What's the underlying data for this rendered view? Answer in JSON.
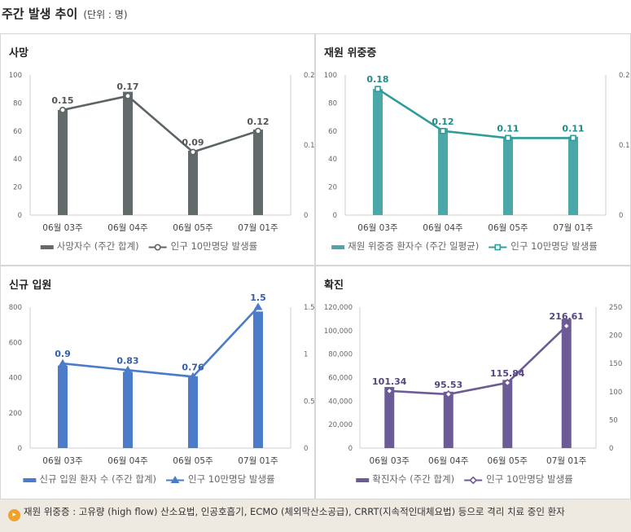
{
  "header": {
    "title": "주간 발생 추이",
    "unit": "(단위 : 명)"
  },
  "note": {
    "icon": "speaker-icon",
    "text": "재원 위중증 : 고유량 (high flow) 산소요법, 인공호흡기, ECMO (체외막산소공급), CRRT(지속적인대체요법) 등으로 격리 치료 중인 환자"
  },
  "chart_data": [
    {
      "type": "bar",
      "title": "사망",
      "color": "#626a6c",
      "lineColor": "#5c6366",
      "labelColor": "#555555",
      "marker": "circle",
      "categories": [
        "06월 03주",
        "06월 04주",
        "06월 05주",
        "07월 01주"
      ],
      "bar_series": {
        "name": "사망자수 (주간 합계)",
        "values": [
          75,
          88,
          46,
          61
        ]
      },
      "line_series": {
        "name": "인구 10만명당 발생률",
        "values": [
          0.15,
          0.17,
          0.09,
          0.12
        ]
      },
      "ylim_left": [
        0,
        100
      ],
      "yticks_left": [
        0,
        20,
        40,
        60,
        80,
        100
      ],
      "yticklabels_left": [
        "0",
        "20",
        "40",
        "60",
        "80",
        "100"
      ],
      "ylim_right": [
        0,
        0.2
      ],
      "yticks_right": [
        0,
        0.1,
        0.2
      ],
      "yticklabels_right": [
        "0",
        "0.1",
        "0.2"
      ],
      "data_labels": [
        "0.15",
        "0.17",
        "0.09",
        "0.12"
      ],
      "legend": [
        "사망자수 (주간 합계)",
        "인구 10만명당 발생률"
      ]
    },
    {
      "type": "bar",
      "title": "재원 위중증",
      "color": "#4aa9a8",
      "lineColor": "#2f9c9c",
      "labelColor": "#228b8b",
      "marker": "square",
      "categories": [
        "06월 03주",
        "06월 04주",
        "06월 05주",
        "07월 01주"
      ],
      "bar_series": {
        "name": "재원 위중증 환자수 (주간 일평균)",
        "values": [
          90,
          62,
          56,
          56
        ]
      },
      "line_series": {
        "name": "인구 10만명당 발생률",
        "values": [
          0.18,
          0.12,
          0.11,
          0.11
        ]
      },
      "ylim_left": [
        0,
        100
      ],
      "yticks_left": [
        0,
        20,
        40,
        60,
        80,
        100
      ],
      "yticklabels_left": [
        "0",
        "20",
        "40",
        "60",
        "80",
        "100"
      ],
      "ylim_right": [
        0,
        0.2
      ],
      "yticks_right": [
        0,
        0.1,
        0.2
      ],
      "yticklabels_right": [
        "0",
        "0.1",
        "0.2"
      ],
      "data_labels": [
        "0.18",
        "0.12",
        "0.11",
        "0.11"
      ],
      "legend": [
        "재원 위중증 환자수 (주간 일평균)",
        "인구 10만명당 발생률"
      ]
    },
    {
      "type": "bar",
      "title": "신규 입원",
      "color": "#4a7cc9",
      "lineColor": "#4a7cc9",
      "labelColor": "#2f5fae",
      "marker": "triangle",
      "categories": [
        "06월 03주",
        "06월 04주",
        "06월 05주",
        "07월 01주"
      ],
      "bar_series": {
        "name": "신규 입원 환자 수 (주간 합계)",
        "values": [
          468,
          432,
          408,
          775
        ]
      },
      "line_series": {
        "name": "인구 10만명당 발생률",
        "values": [
          0.9,
          0.83,
          0.76,
          1.5
        ]
      },
      "ylim_left": [
        0,
        800
      ],
      "yticks_left": [
        0,
        200,
        400,
        600,
        800
      ],
      "yticklabels_left": [
        "0",
        "200",
        "400",
        "600",
        "800"
      ],
      "ylim_right": [
        0,
        1.5
      ],
      "yticks_right": [
        0,
        0.5,
        1,
        1.5
      ],
      "yticklabels_right": [
        "0",
        "0.5",
        "1",
        "1.5"
      ],
      "data_labels": [
        "0.9",
        "0.83",
        "0.76",
        "1.5"
      ],
      "legend": [
        "신규 입원 환자 수 (주간 합계)",
        "인구 10만명당 발생률"
      ]
    },
    {
      "type": "bar",
      "title": "확진",
      "color": "#6c5b97",
      "lineColor": "#6c5b97",
      "labelColor": "#56467f",
      "marker": "diamond",
      "categories": [
        "06월 03주",
        "06월 04주",
        "06월 05주",
        "07월 01주"
      ],
      "bar_series": {
        "name": "확진자수 (주간 합계)",
        "values": [
          52000,
          48000,
          58000,
          110000
        ]
      },
      "line_series": {
        "name": "인구 10만명당 발생률",
        "values": [
          101.34,
          95.53,
          115.84,
          216.61
        ]
      },
      "ylim_left": [
        0,
        120000
      ],
      "yticks_left": [
        0,
        20000,
        40000,
        60000,
        80000,
        100000,
        120000
      ],
      "yticklabels_left": [
        "0",
        "20,000",
        "40,000",
        "60,000",
        "80,000",
        "100,000",
        "120,000"
      ],
      "ylim_right": [
        0,
        250
      ],
      "yticks_right": [
        0,
        50,
        100,
        150,
        200,
        250
      ],
      "yticklabels_right": [
        "0",
        "50",
        "100",
        "150",
        "200",
        "250"
      ],
      "data_labels": [
        "101.34",
        "95.53",
        "115.84",
        "216.61"
      ],
      "legend": [
        "확진자수 (주간 합계)",
        "인구 10만명당 발생률"
      ]
    }
  ]
}
